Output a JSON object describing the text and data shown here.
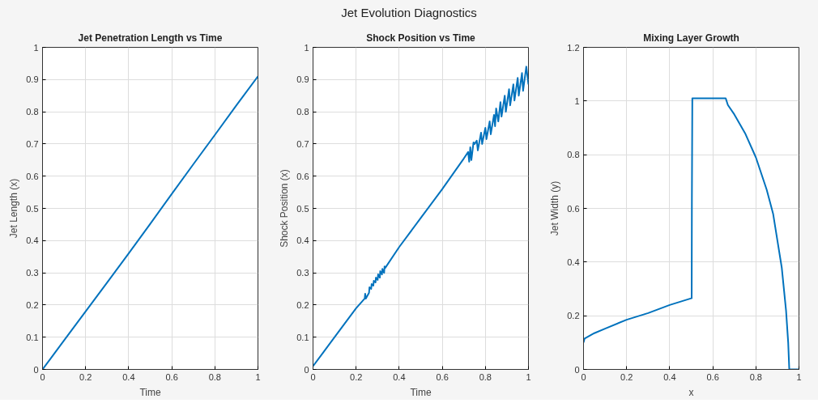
{
  "chart_data": [
    {
      "type": "line",
      "title": "Jet Penetration Length vs Time",
      "xlabel": "Time",
      "ylabel": "Jet Length (x)",
      "annotations": [
        "Jet Evolution Diagnostics"
      ],
      "x": [
        0,
        0.05,
        0.1,
        0.2,
        0.3,
        0.4,
        0.5,
        0.6,
        0.7,
        0.8,
        0.9,
        1.0
      ],
      "series": [
        {
          "color": "#0072bd",
          "values": [
            0,
            0.045,
            0.09,
            0.18,
            0.27,
            0.36,
            0.452,
            0.545,
            0.637,
            0.728,
            0.82,
            0.91
          ]
        }
      ],
      "xlim": [
        0,
        1
      ],
      "ylim": [
        0,
        1
      ],
      "xticks": [
        0,
        0.2,
        0.4,
        0.6,
        0.8,
        1
      ],
      "yticks": [
        0,
        0.1,
        0.2,
        0.3,
        0.4,
        0.5,
        0.6,
        0.7,
        0.8,
        0.9,
        1
      ],
      "grid": true
    },
    {
      "type": "line",
      "title": "Shock Position vs Time",
      "xlabel": "Time",
      "ylabel": "Shock Position (x)",
      "x": [
        0,
        0.05,
        0.1,
        0.2,
        0.24,
        0.242,
        0.245,
        0.26,
        0.262,
        0.27,
        0.272,
        0.28,
        0.282,
        0.29,
        0.292,
        0.3,
        0.302,
        0.31,
        0.312,
        0.32,
        0.322,
        0.33,
        0.332,
        0.335,
        0.4,
        0.5,
        0.6,
        0.7,
        0.72,
        0.725,
        0.73,
        0.735,
        0.745,
        0.75,
        0.76,
        0.765,
        0.78,
        0.785,
        0.8,
        0.805,
        0.82,
        0.825,
        0.84,
        0.845,
        0.85,
        0.86,
        0.87,
        0.875,
        0.89,
        0.895,
        0.91,
        0.915,
        0.93,
        0.935,
        0.95,
        0.955,
        0.97,
        0.975,
        0.99,
        1.0
      ],
      "series": [
        {
          "color": "#0072bd",
          "values": [
            0.01,
            0.055,
            0.1,
            0.19,
            0.22,
            0.235,
            0.22,
            0.238,
            0.255,
            0.25,
            0.265,
            0.26,
            0.275,
            0.27,
            0.285,
            0.278,
            0.295,
            0.285,
            0.305,
            0.295,
            0.312,
            0.3,
            0.32,
            0.315,
            0.38,
            0.47,
            0.56,
            0.655,
            0.675,
            0.645,
            0.69,
            0.65,
            0.705,
            0.7,
            0.71,
            0.68,
            0.735,
            0.7,
            0.75,
            0.715,
            0.77,
            0.73,
            0.79,
            0.755,
            0.81,
            0.77,
            0.83,
            0.785,
            0.85,
            0.8,
            0.87,
            0.82,
            0.885,
            0.835,
            0.905,
            0.85,
            0.92,
            0.865,
            0.94,
            0.885
          ]
        }
      ],
      "xlim": [
        0,
        1
      ],
      "ylim": [
        0,
        1
      ],
      "xticks": [
        0,
        0.2,
        0.4,
        0.6,
        0.8,
        1
      ],
      "yticks": [
        0,
        0.1,
        0.2,
        0.3,
        0.4,
        0.5,
        0.6,
        0.7,
        0.8,
        0.9,
        1
      ],
      "grid": true
    },
    {
      "type": "line",
      "title": "Mixing Layer Growth",
      "xlabel": "x",
      "ylabel": "Jet Width (y)",
      "x": [
        0,
        0.005,
        0.05,
        0.1,
        0.2,
        0.3,
        0.4,
        0.5,
        0.502,
        0.503,
        0.505,
        0.66,
        0.67,
        0.7,
        0.75,
        0.8,
        0.85,
        0.88,
        0.9,
        0.92,
        0.94,
        0.95,
        0.955,
        1.0
      ],
      "series": [
        {
          "color": "#0072bd",
          "values": [
            0.1,
            0.115,
            0.135,
            0.152,
            0.185,
            0.21,
            0.24,
            0.265,
            0.265,
            0.64,
            1.01,
            1.01,
            0.985,
            0.95,
            0.88,
            0.79,
            0.67,
            0.58,
            0.48,
            0.38,
            0.22,
            0.1,
            0,
            0
          ]
        }
      ],
      "xlim": [
        0,
        1
      ],
      "ylim": [
        0,
        1.2
      ],
      "xticks": [
        0,
        0.2,
        0.4,
        0.6,
        0.8,
        1
      ],
      "yticks": [
        0,
        0.2,
        0.4,
        0.6,
        0.8,
        1,
        1.2
      ],
      "grid": true
    }
  ]
}
